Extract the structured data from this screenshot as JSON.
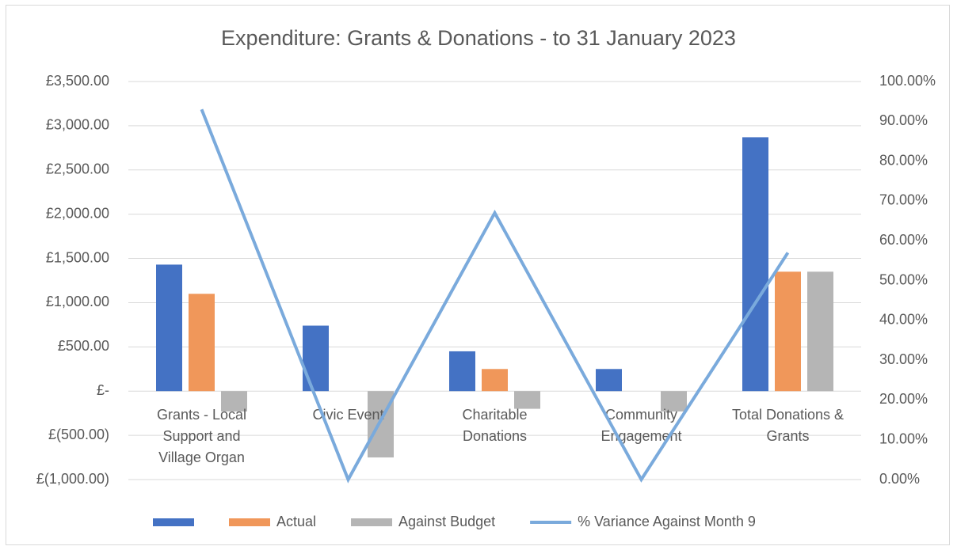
{
  "chart_data": {
    "type": "bar",
    "title": "Expenditure: Grants & Donations - to 31 January 2023",
    "categories": [
      "Grants - Local Support and Village Organ",
      "Civic Event",
      "Charitable Donations",
      "Community Engagement",
      "Total Donations & Grants"
    ],
    "series": [
      {
        "color": "#4472c4",
        "values": [
          1430,
          740,
          450,
          250,
          2870
        ]
      },
      {
        "name": "Actual",
        "color": "#f0975a",
        "values": [
          1100,
          0,
          250,
          0,
          1350
        ]
      },
      {
        "name": "Against Budget",
        "color": "#b5b5b5",
        "values": [
          -230,
          -750,
          -200,
          -230,
          1350
        ]
      },
      {
        "name": "% Variance Against Month 9",
        "type": "line",
        "axis": "y2",
        "color": "#7aaadc",
        "values": [
          93,
          0,
          67,
          0,
          57
        ]
      }
    ],
    "ylim": [
      -1000,
      3500
    ],
    "yticks": [
      {
        "value": -1000,
        "label": "£(1,000.00)"
      },
      {
        "value": -500,
        "label": "£(500.00)"
      },
      {
        "value": 0,
        "label": "£-"
      },
      {
        "value": 500,
        "label": "£500.00"
      },
      {
        "value": 1000,
        "label": "£1,000.00"
      },
      {
        "value": 1500,
        "label": "£1,500.00"
      },
      {
        "value": 2000,
        "label": "£2,000.00"
      },
      {
        "value": 2500,
        "label": "£2,500.00"
      },
      {
        "value": 3000,
        "label": "£3,000.00"
      },
      {
        "value": 3500,
        "label": "£3,500.00"
      }
    ],
    "y2lim": [
      0,
      100
    ],
    "y2ticks": [
      {
        "value": 0,
        "label": "0.00%"
      },
      {
        "value": 10,
        "label": "10.00%"
      },
      {
        "value": 20,
        "label": "20.00%"
      },
      {
        "value": 30,
        "label": "30.00%"
      },
      {
        "value": 40,
        "label": "40.00%"
      },
      {
        "value": 50,
        "label": "50.00%"
      },
      {
        "value": 60,
        "label": "60.00%"
      },
      {
        "value": 70,
        "label": "70.00%"
      },
      {
        "value": 80,
        "label": "80.00%"
      },
      {
        "value": 90,
        "label": "90.00%"
      },
      {
        "value": 100,
        "label": "100.00%"
      }
    ],
    "grid": true,
    "legend": "bottom"
  }
}
